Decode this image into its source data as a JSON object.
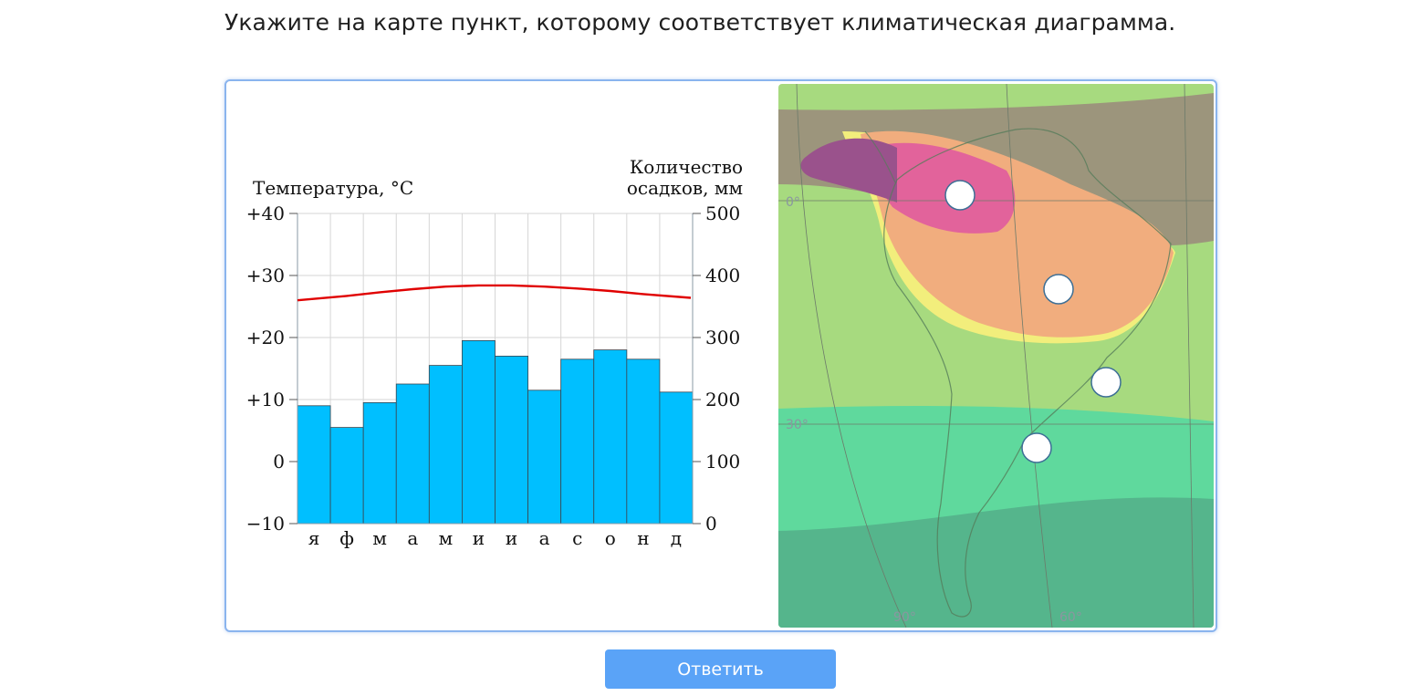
{
  "question": "Укажите на карте пункт, которому соответствует климатическая диаграмма.",
  "answer_button_label": "Ответить",
  "colors": {
    "precip_bar": "#00bfff",
    "temp_line": "#e00000",
    "button": "#5aa3f7",
    "card_border": "#8ab4ee"
  },
  "chart_data": {
    "type": "bar",
    "title": "",
    "categories": [
      "я",
      "ф",
      "м",
      "а",
      "м",
      "и",
      "и",
      "а",
      "с",
      "о",
      "н",
      "д"
    ],
    "y_left": {
      "label": "Температура, °C",
      "ylim": [
        -10,
        40
      ],
      "ticks": [
        40,
        30,
        20,
        10,
        0,
        -10
      ],
      "tick_labels": [
        "+40",
        "+30",
        "+20",
        "+10",
        "0",
        "−10"
      ]
    },
    "y_right": {
      "label_line1": "Количество",
      "label_line2": "осадков, мм",
      "ylim": [
        0,
        500
      ],
      "ticks": [
        500,
        400,
        300,
        200,
        100,
        0
      ],
      "tick_labels": [
        "500",
        "400",
        "300",
        "200",
        "100",
        "0"
      ]
    },
    "series": [
      {
        "kind": "bar",
        "axis": "right",
        "values": [
          190,
          155,
          195,
          225,
          255,
          295,
          270,
          215,
          265,
          280,
          265,
          212
        ]
      },
      {
        "kind": "line",
        "axis": "left",
        "values": [
          26.0,
          26.7,
          27.3,
          27.8,
          28.2,
          28.4,
          28.4,
          28.2,
          27.9,
          27.5,
          27.0,
          26.4
        ]
      }
    ],
    "grid": true
  },
  "map": {
    "lat_labels": [
      "0°",
      "30°"
    ],
    "lon_labels": [
      "90°",
      "60°"
    ],
    "points": [
      {
        "id": "point-1",
        "name": "map-point-amazon-west"
      },
      {
        "id": "point-2",
        "name": "map-point-brazil-central"
      },
      {
        "id": "point-3",
        "name": "map-point-brazil-southeast"
      },
      {
        "id": "point-4",
        "name": "map-point-argentina"
      }
    ]
  }
}
